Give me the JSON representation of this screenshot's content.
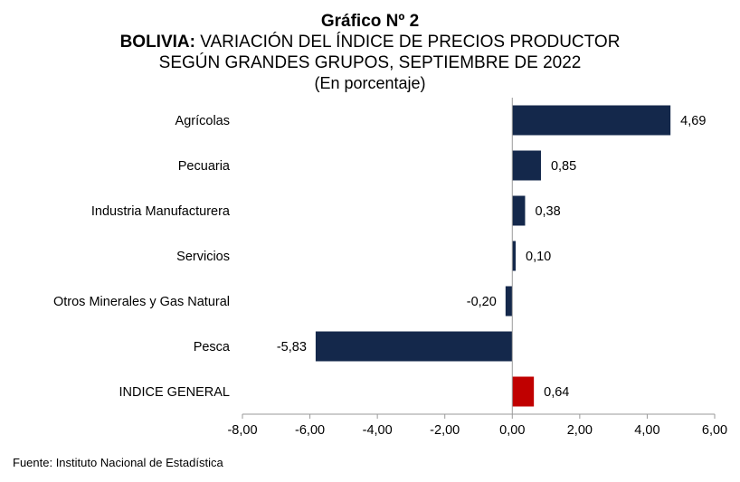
{
  "title": {
    "line1": "Gráfico Nº 2",
    "line2_country": "BOLIVIA:",
    "line2_rest": " VARIACIÓN DEL ÍNDICE DE PRECIOS PRODUCTOR",
    "line3": "SEGÚN GRANDES GRUPOS, SEPTIEMBRE DE 2022",
    "line4": "(En porcentaje)"
  },
  "source": "Fuente: Instituto Nacional de Estadística",
  "colors": {
    "bar": "#14284b",
    "highlight": "#c00000",
    "axis": "#9a9a9a"
  },
  "chart_data": {
    "type": "bar",
    "orientation": "horizontal",
    "categories": [
      "Agrícolas",
      "Pecuaria",
      "Industria Manufacturera",
      "Servicios",
      "Otros Minerales y Gas Natural",
      "Pesca",
      "INDICE GENERAL"
    ],
    "values": [
      4.69,
      0.85,
      0.38,
      0.1,
      -0.2,
      -5.83,
      0.64
    ],
    "value_labels": [
      "4,69",
      "0,85",
      "0,38",
      "0,10",
      "-0,20",
      "-5,83",
      "0,64"
    ],
    "highlight_category": "INDICE GENERAL",
    "xlim": [
      -8,
      6
    ],
    "x_ticks": [
      -8,
      -6,
      -4,
      -2,
      0,
      2,
      4,
      6
    ],
    "x_tick_labels": [
      "-8,00",
      "-6,00",
      "-4,00",
      "-2,00",
      "0,00",
      "2,00",
      "4,00",
      "6,00"
    ],
    "grid": false,
    "legend": "none"
  }
}
